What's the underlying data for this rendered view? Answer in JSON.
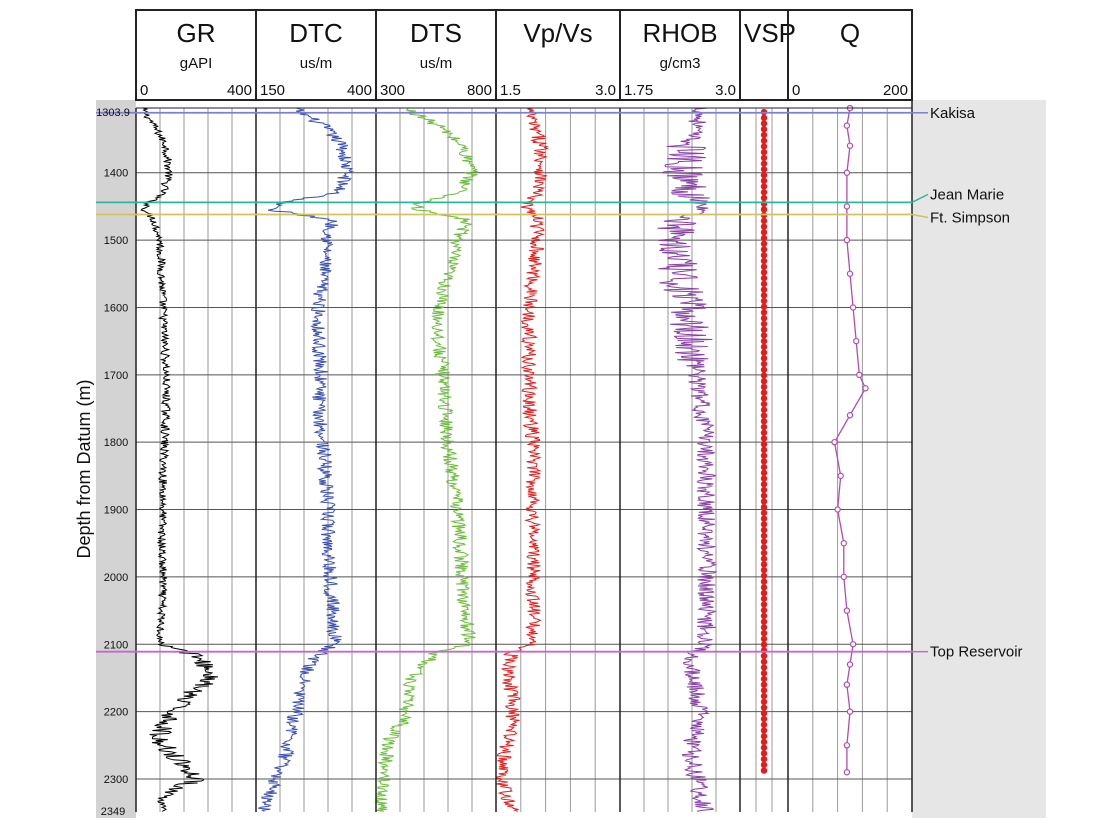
{
  "chart_data": {
    "type": "line",
    "ylabel": "Depth from Datum (m)",
    "depth_range": [
      1303.9,
      2349
    ],
    "depth_top_label": "1303.9",
    "depth_bottom_label": "2349",
    "y_ticks": [
      1400,
      1500,
      1600,
      1700,
      1800,
      1900,
      2000,
      2100,
      2200,
      2300
    ],
    "grid": true,
    "tracks": [
      {
        "key": "gr",
        "name": "GR",
        "unit": "gAPI",
        "min": 0,
        "max": 400,
        "min_label": "0",
        "max_label": "400",
        "color": "#000000",
        "depth": [
          1304,
          1330,
          1360,
          1400,
          1430,
          1445,
          1455,
          1470,
          1500,
          1550,
          1600,
          1650,
          1700,
          1750,
          1800,
          1850,
          1900,
          1950,
          2000,
          2050,
          2100,
          2110,
          2130,
          2150,
          2180,
          2210,
          2240,
          2270,
          2300,
          2330,
          2349
        ],
        "values": [
          20,
          60,
          100,
          110,
          90,
          40,
          30,
          60,
          80,
          85,
          90,
          95,
          100,
          100,
          95,
          90,
          90,
          85,
          90,
          85,
          80,
          170,
          230,
          250,
          160,
          110,
          70,
          140,
          200,
          80,
          90
        ]
      },
      {
        "key": "dtc",
        "name": "DTC",
        "unit": "us/m",
        "min": 150,
        "max": 400,
        "min_label": "150",
        "max_label": "400",
        "color": "#3a4fb3",
        "depth": [
          1304,
          1330,
          1360,
          1400,
          1430,
          1445,
          1455,
          1470,
          1500,
          1550,
          1600,
          1650,
          1700,
          1750,
          1800,
          1850,
          1900,
          1950,
          2000,
          2050,
          2100,
          2110,
          2130,
          2150,
          2180,
          2210,
          2240,
          2270,
          2300,
          2330,
          2349
        ],
        "values": [
          230,
          290,
          330,
          340,
          320,
          200,
          180,
          310,
          300,
          290,
          280,
          280,
          285,
          280,
          290,
          295,
          300,
          300,
          305,
          310,
          315,
          290,
          260,
          250,
          240,
          230,
          220,
          210,
          190,
          175,
          165
        ]
      },
      {
        "key": "dts",
        "name": "DTS",
        "unit": "us/m",
        "min": 300,
        "max": 800,
        "min_label": "300",
        "max_label": "800",
        "color": "#6cbd3c",
        "depth": [
          1304,
          1330,
          1360,
          1400,
          1430,
          1445,
          1455,
          1470,
          1500,
          1550,
          1600,
          1650,
          1700,
          1750,
          1800,
          1850,
          1900,
          1950,
          2000,
          2050,
          2100,
          2110,
          2130,
          2150,
          2180,
          2210,
          2240,
          2270,
          2300,
          2330,
          2349
        ],
        "values": [
          420,
          560,
          660,
          700,
          650,
          480,
          470,
          680,
          640,
          600,
          560,
          560,
          580,
          590,
          600,
          620,
          640,
          650,
          660,
          670,
          690,
          560,
          500,
          450,
          430,
          420,
          360,
          340,
          330,
          320,
          320
        ]
      },
      {
        "key": "vpvs",
        "name": "Vp/Vs",
        "unit": "",
        "min": 1.5,
        "max": 3.0,
        "min_label": "1.5",
        "max_label": "3.0",
        "color": "#e51c1c",
        "depth": [
          1304,
          1330,
          1360,
          1400,
          1430,
          1445,
          1455,
          1470,
          1500,
          1550,
          1600,
          1650,
          1700,
          1750,
          1800,
          1850,
          1900,
          1950,
          2000,
          2050,
          2100,
          2110,
          2130,
          2150,
          2180,
          2210,
          2240,
          2270,
          2300,
          2330,
          2349
        ],
        "values": [
          1.9,
          1.95,
          2.05,
          2.05,
          2.0,
          1.85,
          1.9,
          2.0,
          2.0,
          1.95,
          1.9,
          1.9,
          1.9,
          1.9,
          1.95,
          1.95,
          1.95,
          1.95,
          1.95,
          1.95,
          1.95,
          1.7,
          1.65,
          1.65,
          1.7,
          1.7,
          1.65,
          1.6,
          1.55,
          1.65,
          1.7
        ]
      },
      {
        "key": "rhob",
        "name": "RHOB",
        "unit": "g/cm3",
        "min": 1.75,
        "max": 3.0,
        "min_label": "1.75",
        "max_label": "3.0",
        "color": "#8a3fa8",
        "depth": [
          1304,
          1330,
          1360,
          1400,
          1430,
          1445,
          1455,
          1470,
          1500,
          1550,
          1600,
          1650,
          1700,
          1750,
          1800,
          1850,
          1900,
          1950,
          2000,
          2050,
          2100,
          2110,
          2130,
          2150,
          2180,
          2210,
          2240,
          2270,
          2300,
          2330,
          2349
        ],
        "values": [
          2.6,
          2.55,
          2.45,
          2.4,
          2.5,
          2.6,
          2.6,
          2.4,
          2.3,
          2.35,
          2.45,
          2.5,
          2.55,
          2.6,
          2.65,
          2.65,
          2.65,
          2.65,
          2.65,
          2.65,
          2.65,
          2.55,
          2.5,
          2.5,
          2.55,
          2.6,
          2.5,
          2.5,
          2.55,
          2.6,
          2.65
        ]
      },
      {
        "key": "vsp",
        "name": "VSP",
        "unit": "",
        "min": 0,
        "max": 1,
        "min_label": "",
        "max_label": "",
        "color": "#e51c1c",
        "depth_start": 1310,
        "depth_end": 2290,
        "depth_step": 8.5,
        "value": 0.5
      },
      {
        "key": "q",
        "name": "Q",
        "unit": "",
        "min": 0,
        "max": 200,
        "min_label": "0",
        "max_label": "200",
        "color": "#b44bb0",
        "depth": [
          1304,
          1330,
          1360,
          1400,
          1450,
          1500,
          1550,
          1600,
          1650,
          1700,
          1720,
          1760,
          1800,
          1850,
          1900,
          1950,
          2000,
          2050,
          2100,
          2130,
          2160,
          2200,
          2250,
          2290
        ],
        "values": [
          100,
          95,
          100,
          95,
          95,
          95,
          100,
          105,
          110,
          115,
          125,
          100,
          75,
          85,
          80,
          90,
          90,
          95,
          105,
          100,
          95,
          100,
          95,
          95
        ]
      }
    ],
    "markers": [
      {
        "label": "Kakisa",
        "depth": 1311,
        "color": "#7b7fd6"
      },
      {
        "label": "Jean Marie",
        "depth": 1444,
        "color": "#2bb89a"
      },
      {
        "label": "Ft. Simpson",
        "depth": 1462,
        "color": "#d6c25a"
      },
      {
        "label": "Top Reservoir",
        "depth": 2111,
        "color": "#c46ac9"
      }
    ]
  }
}
